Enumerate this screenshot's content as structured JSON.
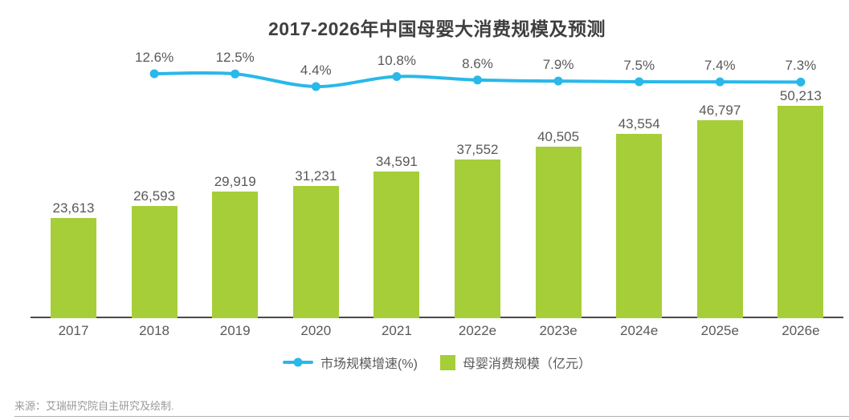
{
  "title": "2017-2026年中国母婴大消费规模及预测",
  "source": "来源：艾瑞研究院自主研究及绘制.",
  "colors": {
    "bar": "#a5ce39",
    "line": "#29b8ea",
    "title_text": "#3f3f3f",
    "label_text": "#595959",
    "axis": "#4a4a4a",
    "source_text": "#999999",
    "divider": "#b0b0b0"
  },
  "legend": {
    "items": [
      {
        "label": "市场规模增速(%)",
        "marker": "line-dot",
        "color": "#29b8ea"
      },
      {
        "label": "母婴消费规模（亿元）",
        "marker": "square",
        "color": "#a5ce39"
      }
    ]
  },
  "chart_data": {
    "type": "bar",
    "title": "2017-2026年中国母婴大消费规模及预测",
    "categories": [
      "2017",
      "2018",
      "2019",
      "2020",
      "2021",
      "2022e",
      "2023e",
      "2024e",
      "2025e",
      "2026e"
    ],
    "series": [
      {
        "name": "母婴消费规模（亿元）",
        "type": "bar",
        "color": "#a5ce39",
        "values": [
          23613,
          26593,
          29919,
          31231,
          34591,
          37552,
          40505,
          43554,
          46797,
          50213
        ],
        "labels": [
          "23,613",
          "26,593",
          "29,919",
          "31,231",
          "34,591",
          "37,552",
          "40,505",
          "43,554",
          "46,797",
          "50,213"
        ]
      },
      {
        "name": "市场规模增速(%)",
        "type": "line",
        "color": "#29b8ea",
        "values": [
          null,
          12.6,
          12.5,
          4.4,
          10.8,
          8.6,
          7.9,
          7.5,
          7.4,
          7.3
        ],
        "labels": [
          null,
          "12.6%",
          "12.5%",
          "4.4%",
          "10.8%",
          "8.6%",
          "7.9%",
          "7.5%",
          "7.4%",
          "7.3%"
        ]
      }
    ],
    "ylim": [
      0,
      50213
    ],
    "grid": false,
    "legend_position": "bottom",
    "value_labels_shown": true
  }
}
